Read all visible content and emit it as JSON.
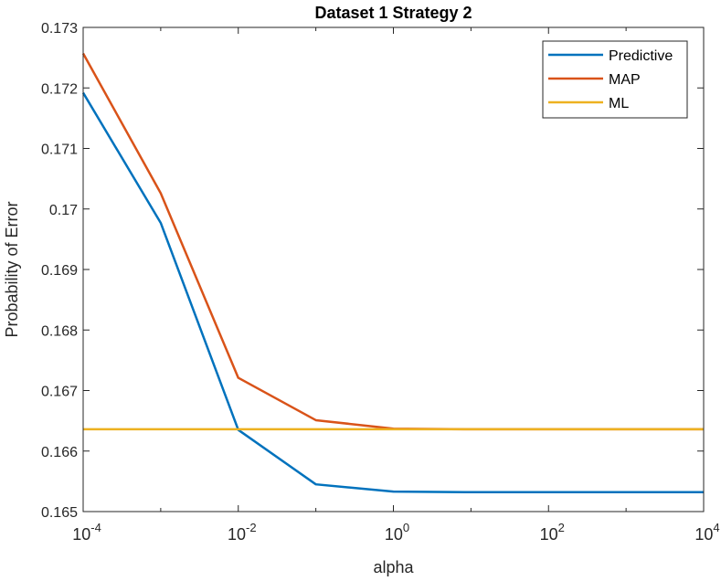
{
  "chart_data": {
    "type": "line",
    "title": "Dataset 1 Strategy 2",
    "xlabel": "alpha",
    "ylabel": "Probability of Error",
    "x_scale": "log",
    "x": [
      0.0001,
      0.001,
      0.01,
      0.1,
      1,
      10,
      100,
      1000,
      10000
    ],
    "xlim": [
      0.0001,
      10000
    ],
    "ylim": [
      0.165,
      0.173
    ],
    "x_ticks": [
      {
        "value": 0.0001,
        "base": "10",
        "exp": "-4"
      },
      {
        "value": 0.01,
        "base": "10",
        "exp": "-2"
      },
      {
        "value": 1,
        "base": "10",
        "exp": "0"
      },
      {
        "value": 100,
        "base": "10",
        "exp": "2"
      },
      {
        "value": 10000,
        "base": "10",
        "exp": "4"
      }
    ],
    "y_ticks": [
      {
        "value": 0.165,
        "label": "0.165"
      },
      {
        "value": 0.166,
        "label": "0.166"
      },
      {
        "value": 0.167,
        "label": "0.167"
      },
      {
        "value": 0.168,
        "label": "0.168"
      },
      {
        "value": 0.169,
        "label": "0.169"
      },
      {
        "value": 0.17,
        "label": "0.17"
      },
      {
        "value": 0.171,
        "label": "0.171"
      },
      {
        "value": 0.172,
        "label": "0.172"
      },
      {
        "value": 0.173,
        "label": "0.173"
      }
    ],
    "grid": false,
    "legend_position": "top-right",
    "series": [
      {
        "name": "Predictive",
        "color": "#0072BD",
        "values": [
          0.17192,
          0.16977,
          0.16635,
          0.16545,
          0.16533,
          0.16532,
          0.16532,
          0.16532,
          0.16532
        ]
      },
      {
        "name": "MAP",
        "color": "#D95319",
        "values": [
          0.17257,
          0.17026,
          0.16721,
          0.16651,
          0.16637,
          0.16636,
          0.16636,
          0.16636,
          0.16636
        ]
      },
      {
        "name": "ML",
        "color": "#EDB120",
        "values": [
          0.16636,
          0.16636,
          0.16636,
          0.16636,
          0.16636,
          0.16636,
          0.16636,
          0.16636,
          0.16636
        ]
      }
    ]
  }
}
